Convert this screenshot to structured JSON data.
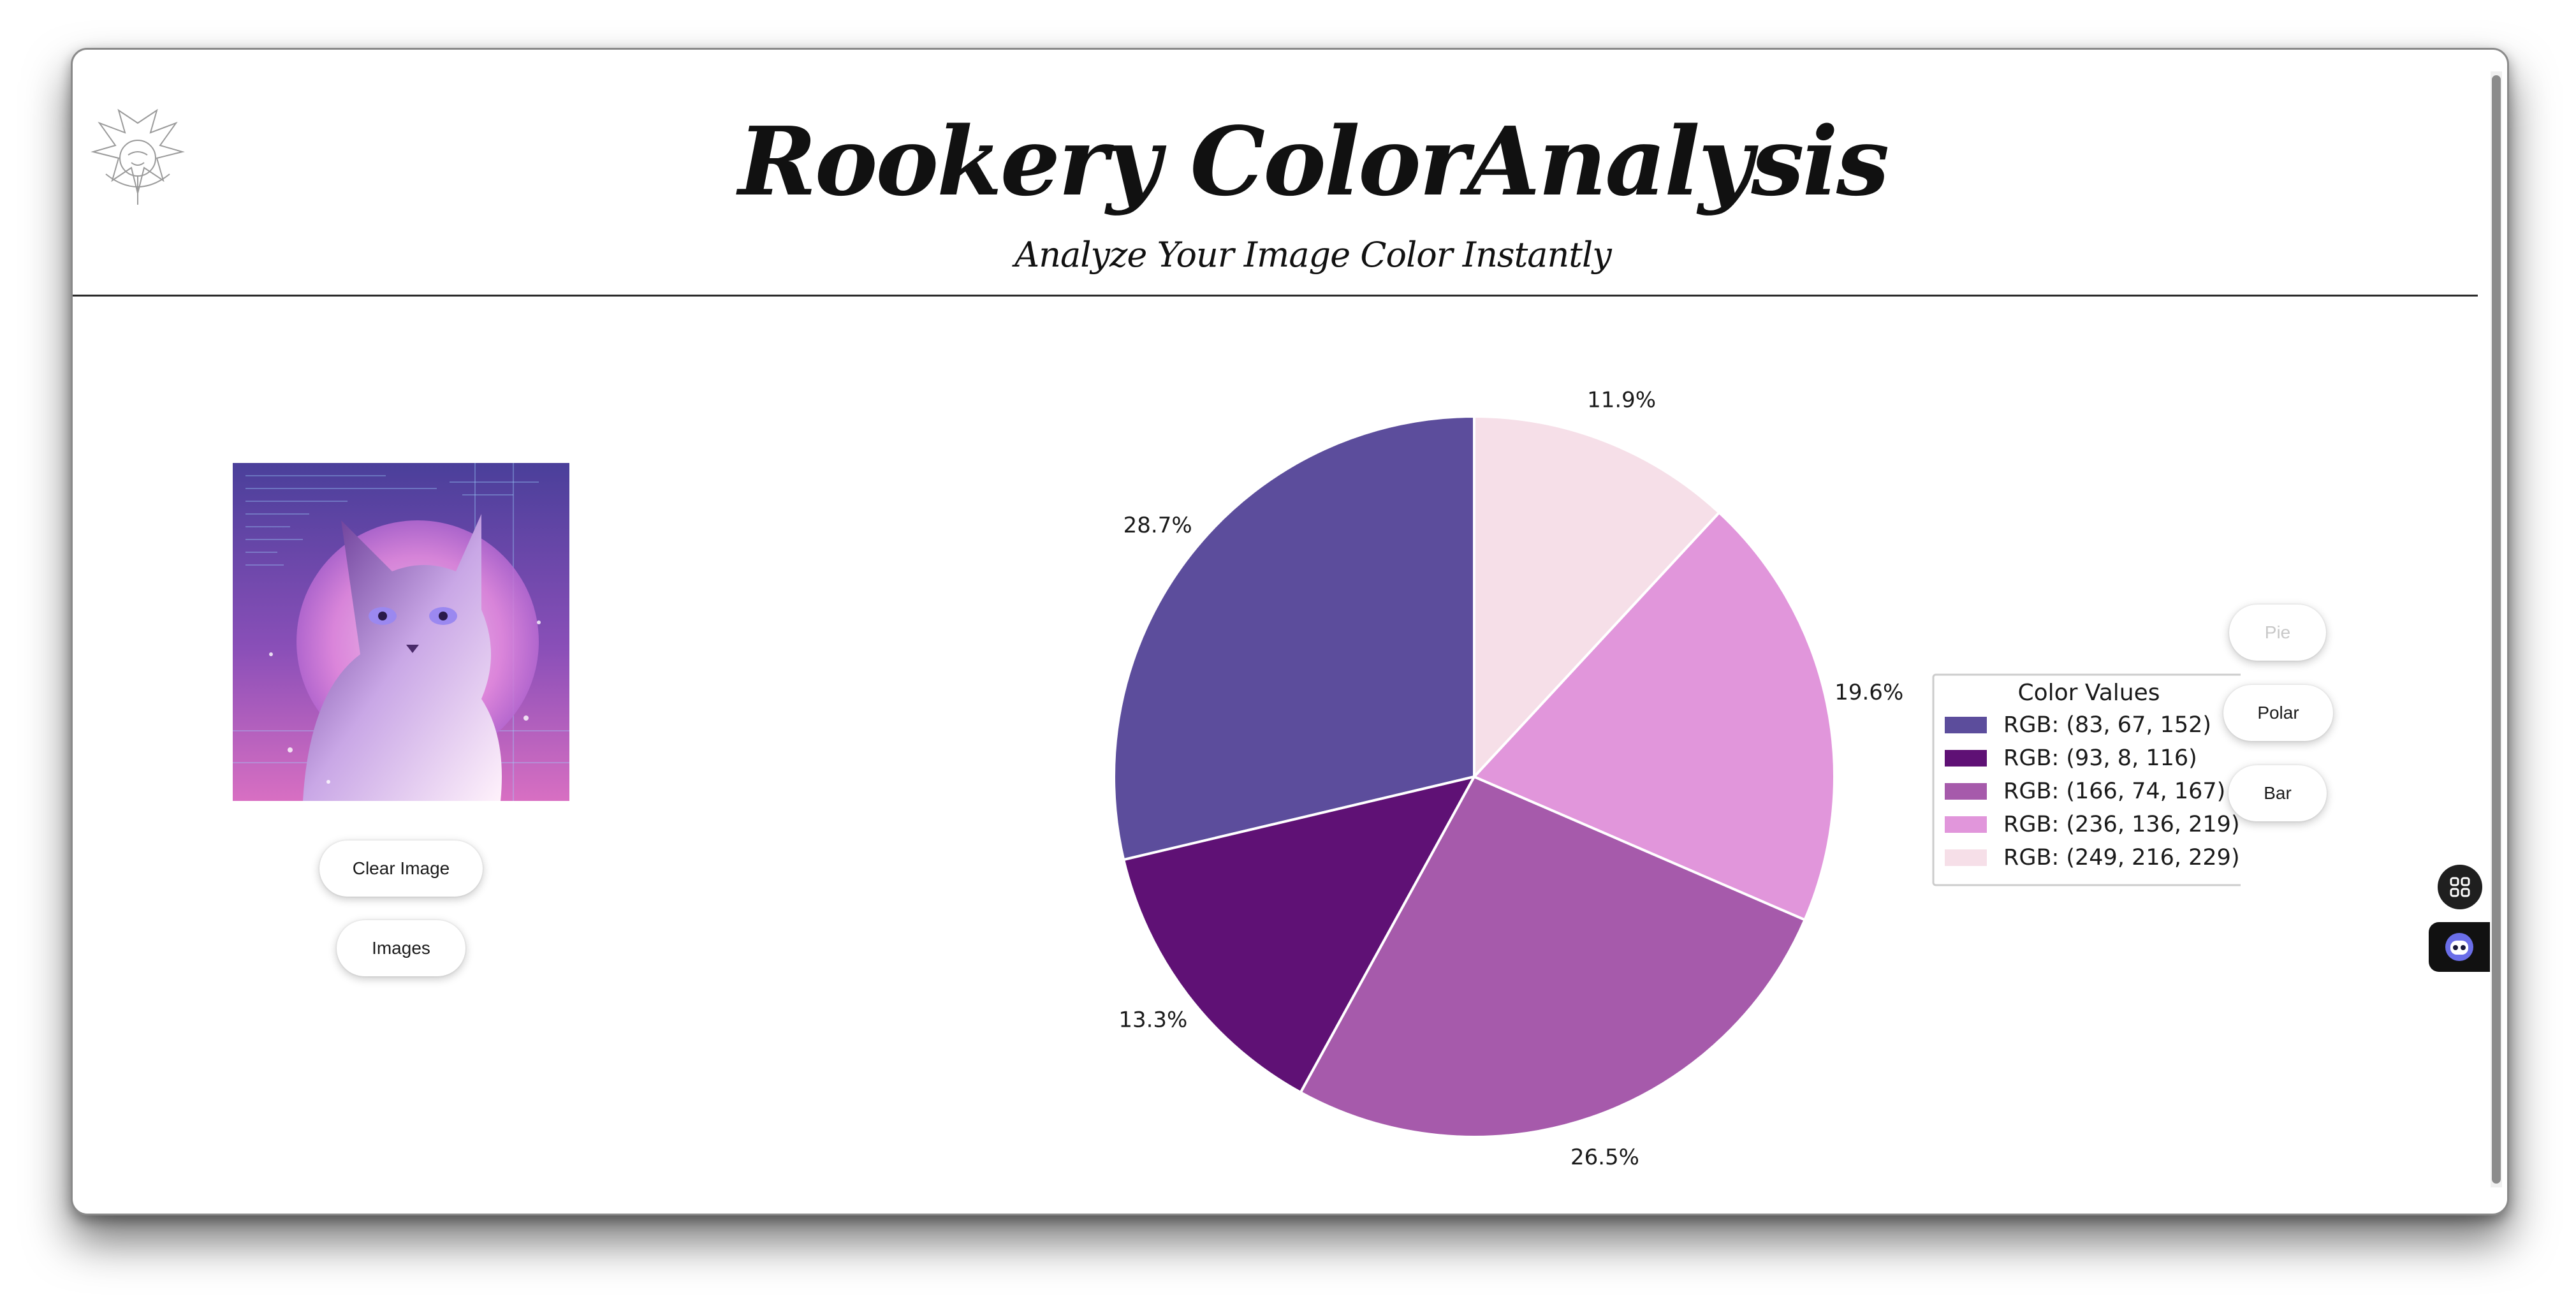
{
  "header": {
    "title": "Rookery ColorAnalysis",
    "subtitle": "Analyze Your Image Color Instantly",
    "logo_icon": "rookery-dragon-logo"
  },
  "left_panel": {
    "image_alt": "Purple cat illustration with code background",
    "clear_button": "Clear Image",
    "images_button": "Images"
  },
  "chart_controls": {
    "pie": "Pie",
    "polar": "Polar",
    "bar": "Bar",
    "active": "Pie"
  },
  "chart_data": {
    "type": "pie",
    "legend_title": "Color Values",
    "legend_position": "right",
    "slices": [
      {
        "label": "RGB: (83, 67, 152)",
        "value": 28.7,
        "color": "#5c4d9c",
        "pct_label": "28.7%"
      },
      {
        "label": "RGB: (93, 8, 116)",
        "value": 13.3,
        "color": "#5f1175",
        "pct_label": "13.3%"
      },
      {
        "label": "RGB: (166, 74, 167)",
        "value": 26.5,
        "color": "#a65aab",
        "pct_label": "26.5%"
      },
      {
        "label": "RGB: (236, 136, 219)",
        "value": 19.6,
        "color": "#e196db",
        "pct_label": "19.6%"
      },
      {
        "label": "RGB: (249, 216, 229)",
        "value": 11.9,
        "color": "#f6dfe8",
        "pct_label": "11.9%"
      }
    ]
  },
  "floating": {
    "grid_icon": "apps-grid-icon",
    "bot_icon": "assistant-bot-icon"
  }
}
